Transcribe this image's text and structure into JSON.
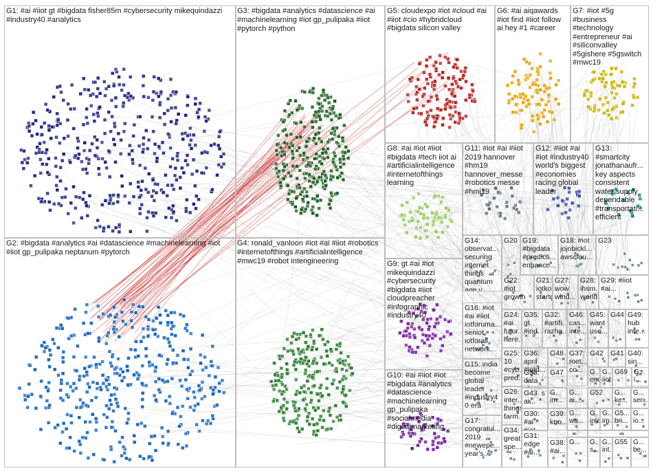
{
  "colors": {
    "background": "#ffffff",
    "panel_border": "#bdbdbd",
    "edge_gray": "#9e9e9e",
    "edge_red": "#c62828",
    "G1": "#1a237e",
    "G2": "#1565c0",
    "G3": "#1b5e20",
    "G4": "#2e7d32",
    "G5": "#b71c1c",
    "G6": "#e6a400",
    "G7": "#c9b400",
    "G8": "#9ccc65",
    "G9": "#7b1fa2",
    "G10": "#6a1b9a",
    "G11": "#546e7a",
    "G12": "#3949ab",
    "G13": "#00897b",
    "misc": "#607d8b"
  },
  "groups": [
    {
      "id": "G1",
      "label": "G1: #ai #iiot gt #bigdata fisher85m #cybersecurity mikequindazzi #industry40 #analytics"
    },
    {
      "id": "G2",
      "label": "G2: #bigdata #analytics #ai #datascience #machinelearning #iot #iiot gp_pulipaka neptanum #pytorch"
    },
    {
      "id": "G3",
      "label": "G3: #bigdata #analytics #datascience #ai #machinelearning #iot gp_pulipaka #iiot #pytorch #python"
    },
    {
      "id": "G4",
      "label": "G4: ronald_vanloon #iot #ai #iiot #robotics #internetofthings #artificialintelligence #mwc19 #robot intengineering"
    },
    {
      "id": "G5",
      "label": "G5: cloudexpo #iot #cloud #ai #iiot #cio #hybridcloud #bigdata silicon valley"
    },
    {
      "id": "G6",
      "label": "G6: #ai aiqawards #iot find #iiot follow ai hey #1 #career"
    },
    {
      "id": "G7",
      "label": "G7: #iot #5g #business #technology #entrepreneur #ai #siliconvalley #5gishere #5gswitch #mwc19"
    },
    {
      "id": "G8",
      "label": "G8: #ai #iot #iiot #bigdata #tech iiot ai #artificialintelligence #internetofthings learning"
    },
    {
      "id": "G9",
      "label": "G9: gt #ai #iot mikequindazzi #cybersecurity #bigdata #iiot cloudpreacher #infographic #industry40"
    },
    {
      "id": "G10",
      "label": "G10: #ai #iiot #iot #bigdata #analytics #datascience #machinelearning gp_pulipaka #socialmedia #digitalmarketing"
    },
    {
      "id": "G11",
      "label": "G11: #iot #ai #iiot 2019 hannover #hm19 hannover_messe #robotics messe #hmi19"
    },
    {
      "id": "G12",
      "label": "G12: #iiot #ai #iot #industry40 world's biggest #economies racing global leader"
    },
    {
      "id": "G13",
      "label": "G13: #smartcity jonathanaufr... key aspects consistent water supply dependable #transportati... efficient"
    },
    {
      "id": "G14",
      "label": "G14: observat... securing internet things quantum age v..."
    },
    {
      "id": "G15",
      "label": "G15: india become global leader #industry4 0 era"
    },
    {
      "id": "G16",
      "label": "G16: #iot #ai #iiot iotforuma... seniot iotforall network..."
    },
    {
      "id": "G17",
      "label": "G17: congratul... 2019 #newepe... year's..."
    },
    {
      "id": "G18",
      "label": "G18: #iot jojobickl... awsclou..."
    },
    {
      "id": "G19",
      "label": "G19: #bigdata #predicti... enhance..."
    },
    {
      "id": "G20",
      "label": "G20"
    },
    {
      "id": "G21",
      "label": "G21: iotkone startgro..."
    },
    {
      "id": "G22",
      "label": "G22: #iot growth"
    },
    {
      "id": "G23",
      "label": "G23"
    },
    {
      "id": "G24",
      "label": "G24: #ai futur... here..."
    },
    {
      "id": "G25",
      "label": "G25: 10 #cyb... pred..."
    },
    {
      "id": "G26",
      "label": "G26: inter... things farm..."
    },
    {
      "id": "G27",
      "label": "G27: wow wind..."
    },
    {
      "id": "G28",
      "label": "G28: ihsm... world..."
    },
    {
      "id": "G29",
      "label": "G29: #iiot #ai..."
    },
    {
      "id": "G30",
      "label": "G30: #ai #iot..."
    },
    {
      "id": "G31",
      "label": "G31: edge #ai..."
    },
    {
      "id": "G32",
      "label": "G32: #artifi... razha..."
    },
    {
      "id": "G33",
      "label": "G33: data chan..."
    },
    {
      "id": "G34",
      "label": "G34: great spe..."
    },
    {
      "id": "G35",
      "label": "G35: gt #ind..."
    },
    {
      "id": "G36",
      "label": "G36: april #iotd..."
    },
    {
      "id": "G37",
      "label": "G37: met... co..."
    },
    {
      "id": "G38",
      "label": "G38: #ai..."
    },
    {
      "id": "G39",
      "label": "G39: kno..."
    },
    {
      "id": "G40",
      "label": "G40: sin..."
    },
    {
      "id": "G41",
      "label": "G41"
    },
    {
      "id": "G42",
      "label": "G42"
    },
    {
      "id": "G43",
      "label": "G43: s ai..."
    },
    {
      "id": "G44",
      "label": "G44"
    },
    {
      "id": "G45",
      "label": "G45: want use..."
    },
    {
      "id": "G46",
      "label": "G46: cas... inte..."
    },
    {
      "id": "G47",
      "label": "G47"
    },
    {
      "id": "G48",
      "label": "G48"
    },
    {
      "id": "G49",
      "label": "G49: hub inte..."
    },
    {
      "id": "G50",
      "label": "G... end"
    },
    {
      "id": "G51",
      "label": "G... iiot"
    },
    {
      "id": "G52",
      "label": "G52"
    },
    {
      "id": "G53",
      "label": "G... im..."
    },
    {
      "id": "G54",
      "label": "G... ai..."
    },
    {
      "id": "G55",
      "label": "G55"
    },
    {
      "id": "G56",
      "label": "G5... bri..."
    },
    {
      "id": "G57",
      "label": "G... s..."
    },
    {
      "id": "G58",
      "label": "G... int..."
    },
    {
      "id": "G59",
      "label": "G... be..."
    },
    {
      "id": "G60",
      "label": "G... ke..."
    },
    {
      "id": "G61",
      "label": "G... ser..."
    },
    {
      "id": "G62",
      "label": "G... wa..."
    },
    {
      "id": "G63",
      "label": "G... inte..."
    },
    {
      "id": "G64",
      "label": "G... im..."
    },
    {
      "id": "G65",
      "label": "G... io..."
    },
    {
      "id": "G66",
      "label": "G..."
    },
    {
      "id": "G67",
      "label": "G..."
    },
    {
      "id": "G68",
      "label": "G... ti..."
    },
    {
      "id": "G69",
      "label": "G69"
    },
    {
      "id": "G70",
      "label": "G... i..."
    }
  ]
}
